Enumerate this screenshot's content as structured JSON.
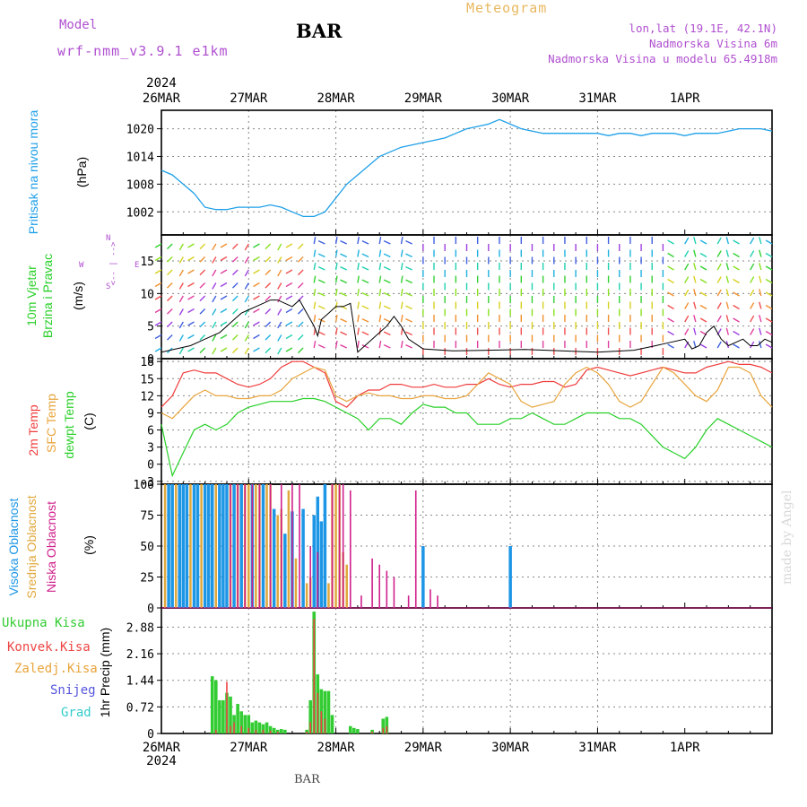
{
  "header": {
    "model_label": "Model",
    "model_name": "wrf-nmm_v3.9.1 e1km",
    "station": "BAR",
    "title": "Meteogram",
    "lonlat": "lon,lat (19.1E, 42.1N)",
    "altitude": "Nadmorska Visina 6m",
    "model_altitude": "Nadmorska Visina u modelu 65.4918m"
  },
  "footer": "BAR",
  "credit": "made by Angel",
  "colors": {
    "pressure": "#1ea0e8",
    "temp2m": "#f03c3c",
    "sfc": "#e8a43c",
    "dewpt": "#28d028",
    "cloud_high": "#1e96e6",
    "cloud_mid": "#e0a83c",
    "cloud_low": "#d0208c",
    "rain_total": "#33cc33",
    "rain_conv": "#ee4444",
    "snow": "#5555dd",
    "grad": "#33cccc",
    "model_text": "#b050d0"
  },
  "time_axis": {
    "year": "2024",
    "ticks": [
      "26MAR",
      "27MAR",
      "28MAR",
      "29MAR",
      "30MAR",
      "31MAR",
      "1APR"
    ]
  },
  "panel_labels": {
    "pressure": {
      "title": "Pritisak na nivou mora",
      "unit": "(hPa)"
    },
    "wind": {
      "title1": "10m Vjetar",
      "title2": "Brzina i Pravac",
      "unit": "(m/s)",
      "compass": [
        "W",
        "<-- | -->",
        "E",
        "N",
        "S"
      ]
    },
    "temp": {
      "t2m": "2m Temp",
      "sfc": "SFC Temp",
      "dew": "dewpt Temp",
      "unit": "(C)"
    },
    "cloud": {
      "high": "Visoka Oblacnost",
      "mid": "Srednja Oblacnost",
      "low": "Niska Oblacnost",
      "unit": "(%)"
    },
    "precip": {
      "total": "Ukupna Kisa",
      "conv": "Konvek.Kisa",
      "frozen": "Zaledj.Kisa",
      "snow": "Snijeg",
      "grad": "Grad",
      "unit": "1hr Precip (mm)"
    }
  },
  "chart_data": [
    {
      "type": "line",
      "name": "pressure",
      "ylim": [
        997,
        1024
      ],
      "yticks": [
        "1002",
        "1008",
        "1014",
        "1020"
      ],
      "ytick_values": [
        1002,
        1008,
        1014,
        1020
      ],
      "x": [
        0,
        3,
        6,
        9,
        12,
        15,
        18,
        21,
        24,
        27,
        30,
        33,
        36,
        39,
        42,
        45,
        48,
        51,
        54,
        57,
        60,
        63,
        66,
        69,
        72,
        75,
        78,
        81,
        84,
        87,
        90,
        93,
        96,
        99,
        102,
        105,
        108,
        111,
        114,
        117,
        120,
        123,
        126,
        129,
        132,
        135,
        138,
        141,
        144,
        147,
        150,
        153,
        156,
        159,
        162,
        165,
        168
      ],
      "values": [
        1011,
        1010,
        1008,
        1006,
        1003,
        1002.5,
        1002.5,
        1003,
        1003,
        1003,
        1003.5,
        1003,
        1002,
        1001,
        1001,
        1002,
        1005,
        1008,
        1010,
        1012,
        1014,
        1015,
        1016,
        1016.5,
        1017,
        1017.5,
        1018,
        1019,
        1020,
        1020.5,
        1021,
        1022,
        1021,
        1020,
        1019.5,
        1019,
        1019,
        1019,
        1019,
        1019,
        1019,
        1018.5,
        1019,
        1019,
        1018.5,
        1019,
        1019,
        1019,
        1018.5,
        1019,
        1019,
        1019,
        1019.5,
        1020,
        1020,
        1020,
        1019.5
      ]
    },
    {
      "type": "line",
      "name": "wind_speed",
      "ylim": [
        0,
        19
      ],
      "yticks": [
        "0",
        "5",
        "10",
        "15"
      ],
      "ytick_values": [
        0,
        5,
        10,
        15
      ],
      "x": [
        0,
        4,
        8,
        12,
        16,
        18,
        20,
        22,
        24,
        26,
        28,
        30,
        32,
        34,
        36,
        38,
        40,
        42,
        43,
        44,
        46,
        48,
        50,
        52,
        54,
        56,
        58,
        60,
        62,
        64,
        66,
        68,
        72,
        80,
        90,
        100,
        110,
        120,
        130,
        136,
        140,
        144,
        146,
        148,
        150,
        152,
        154,
        156,
        158,
        160,
        162,
        164,
        166,
        168
      ],
      "values": [
        1,
        1.5,
        2,
        3,
        4,
        5,
        6,
        7,
        7.5,
        8,
        8.5,
        9,
        9,
        8.5,
        8,
        9,
        7,
        5,
        3.5,
        6,
        7,
        8,
        8,
        8.5,
        1,
        2,
        3,
        4,
        5,
        6.5,
        5,
        3,
        1.5,
        1.2,
        1.3,
        1.4,
        1.2,
        1.0,
        1.3,
        2,
        2.5,
        3,
        1.5,
        2,
        4,
        5,
        3,
        2,
        2.5,
        3,
        2,
        2,
        3,
        2.5
      ],
      "barbs_note": "wind direction arrows"
    },
    {
      "type": "line",
      "name": "temperature",
      "ylim": [
        -3.5,
        18.5
      ],
      "yticks": [
        "-3",
        "0",
        "3",
        "6",
        "9",
        "12",
        "15",
        "18"
      ],
      "ytick_values": [
        -3,
        0,
        3,
        6,
        9,
        12,
        15,
        18
      ],
      "x": [
        0,
        3,
        6,
        9,
        12,
        15,
        18,
        21,
        24,
        27,
        30,
        33,
        36,
        39,
        42,
        45,
        48,
        51,
        54,
        57,
        60,
        63,
        66,
        69,
        72,
        75,
        78,
        81,
        84,
        87,
        90,
        93,
        96,
        99,
        102,
        105,
        108,
        111,
        114,
        117,
        120,
        123,
        126,
        129,
        132,
        135,
        138,
        141,
        144,
        147,
        150,
        153,
        156,
        159,
        162,
        165,
        168
      ],
      "series": [
        {
          "name": "2m Temp",
          "values": [
            10,
            12,
            16,
            16.5,
            16,
            16,
            15,
            14,
            13.5,
            14,
            15,
            17,
            18,
            18,
            17,
            16,
            11,
            10,
            12,
            13,
            13,
            14,
            14,
            13.5,
            13.5,
            14,
            13.5,
            13.5,
            14,
            14,
            15,
            14,
            13.5,
            14,
            14,
            14.5,
            14.5,
            13.5,
            14,
            16.5,
            17,
            16.5,
            16,
            15.5,
            16,
            16.5,
            17,
            16.5,
            16,
            16,
            17,
            17.5,
            18,
            17.5,
            17.5,
            17,
            16
          ]
        },
        {
          "name": "SFC Temp",
          "values": [
            9,
            8,
            10,
            12,
            13,
            12,
            12,
            11.5,
            11.5,
            12,
            12,
            13,
            15,
            16,
            17,
            16.5,
            12,
            11,
            12,
            12.5,
            12,
            12,
            11.5,
            11.5,
            12,
            12,
            11.5,
            11.5,
            12,
            14,
            16,
            15,
            14,
            11,
            10,
            10.5,
            11,
            14,
            16,
            17,
            16,
            14,
            11,
            10,
            11,
            14,
            17,
            16,
            14,
            12,
            11,
            13,
            17,
            17,
            16,
            12,
            10
          ]
        },
        {
          "name": "dewpt Temp",
          "values": [
            7,
            -2,
            2,
            6,
            7,
            6,
            7,
            9,
            10,
            10.5,
            11,
            11,
            11,
            11.5,
            11.5,
            11,
            10,
            9,
            8,
            6,
            8,
            8,
            7,
            9,
            10.5,
            10,
            10,
            9,
            9,
            7,
            7,
            7,
            8,
            8,
            9,
            8,
            7,
            7,
            8,
            9,
            9,
            9,
            8,
            8,
            7,
            5,
            3,
            2,
            1,
            3,
            6,
            8,
            7,
            6,
            5,
            4,
            3
          ]
        }
      ]
    },
    {
      "type": "bar",
      "name": "cloud_cover",
      "ylim": [
        0,
        100
      ],
      "yticks": [
        "0",
        "25",
        "50",
        "75",
        "100"
      ],
      "ytick_values": [
        0,
        25,
        50,
        75,
        100
      ],
      "series": [
        {
          "name": "Visoka Oblacnost",
          "x": [
            2,
            3,
            5,
            6,
            7,
            9,
            10,
            12,
            13,
            14,
            16,
            17,
            18,
            20,
            22,
            25,
            28,
            31,
            34,
            36,
            39,
            42,
            43,
            44,
            45,
            72,
            96
          ],
          "values": [
            100,
            100,
            100,
            100,
            100,
            100,
            100,
            100,
            100,
            100,
            100,
            100,
            100,
            100,
            100,
            100,
            100,
            80,
            60,
            78,
            80,
            75,
            90,
            70,
            100,
            50,
            50
          ]
        },
        {
          "name": "Srednja Oblacnost",
          "x": [
            1,
            4,
            8,
            11,
            15,
            19,
            21,
            23,
            24,
            26,
            27,
            29,
            30,
            32,
            33,
            35,
            37,
            40,
            41,
            46,
            47,
            48,
            49,
            50,
            51
          ],
          "values": [
            100,
            100,
            100,
            100,
            100,
            100,
            100,
            100,
            100,
            100,
            100,
            100,
            100,
            75,
            80,
            95,
            40,
            20,
            25,
            20,
            100,
            100,
            100,
            45,
            35
          ]
        },
        {
          "name": "Niska Oblacnost",
          "x": [
            19,
            21,
            23,
            25,
            27,
            30,
            33,
            36,
            38,
            41,
            43,
            47,
            49,
            50,
            52,
            55,
            58,
            60,
            62,
            64,
            68,
            70,
            74,
            76
          ],
          "values": [
            100,
            100,
            100,
            100,
            100,
            100,
            100,
            100,
            100,
            50,
            45,
            100,
            100,
            100,
            95,
            10,
            40,
            35,
            30,
            25,
            10,
            95,
            15,
            10
          ]
        }
      ]
    },
    {
      "type": "bar",
      "name": "precip",
      "ylim": [
        0,
        3.4
      ],
      "yticks": [
        "0",
        "0.72",
        "1.44",
        "2.16",
        "2.88"
      ],
      "ytick_values": [
        0,
        0.72,
        1.44,
        2.16,
        2.88
      ],
      "series": [
        {
          "name": "Ukupna Kisa",
          "x": [
            14,
            15,
            16,
            17,
            18,
            19,
            20,
            21,
            22,
            23,
            24,
            25,
            26,
            27,
            28,
            29,
            30,
            31,
            32,
            33,
            34,
            35,
            36,
            37,
            38,
            39,
            40,
            41,
            42,
            43,
            44,
            45,
            46,
            47,
            48,
            49,
            50,
            51,
            52,
            53,
            54,
            55,
            56,
            57,
            58,
            59,
            60,
            61,
            62,
            63,
            64,
            65,
            66,
            67,
            68,
            69,
            70,
            71,
            72
          ],
          "values": [
            1.55,
            1.44,
            0.9,
            0.9,
            1.1,
            1.0,
            0.5,
            0.8,
            0.6,
            0.5,
            0.5,
            0.3,
            0.35,
            0.3,
            0.25,
            0.3,
            0.2,
            0.15,
            0.1,
            0.12,
            0.1,
            0,
            0,
            0,
            0,
            0,
            0.1,
            0.9,
            3.3,
            1.6,
            1.2,
            1.15,
            1.15,
            0.5,
            0,
            0,
            0,
            0,
            0.2,
            0.15,
            0.12,
            0,
            0,
            0,
            0.1,
            0,
            0,
            0.4,
            0.45,
            0,
            0,
            0,
            0,
            0,
            0,
            0,
            0,
            0,
            0
          ]
        },
        {
          "name": "Konvek.Kisa",
          "x": [
            15,
            18,
            19,
            20,
            22,
            24,
            26,
            28,
            30,
            32,
            40,
            41,
            42,
            43,
            44,
            45,
            58,
            61,
            62
          ],
          "values": [
            0.1,
            1.4,
            0.2,
            0.3,
            0.2,
            0.15,
            0.1,
            0.1,
            0.08,
            0.05,
            0.05,
            0.3,
            3.1,
            1.1,
            0.6,
            0.4,
            0.05,
            0.15,
            0.2
          ]
        }
      ]
    }
  ]
}
